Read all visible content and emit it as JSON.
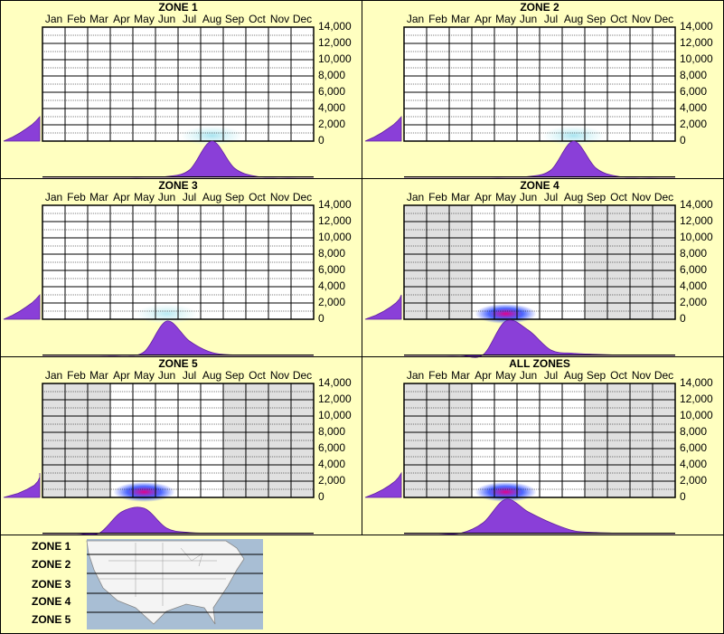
{
  "chart_data": [
    {
      "type": "heatmap",
      "title": "ZONE 1",
      "categories": [
        "Jan",
        "Feb",
        "Mar",
        "Apr",
        "May",
        "Jun",
        "Jul",
        "Aug",
        "Sep",
        "Oct",
        "Nov",
        "Dec"
      ],
      "ylim": [
        0,
        14000
      ],
      "yticks": [
        0,
        {
          "value": 2000,
          "label": "2,000"
        },
        {
          "value": 4000,
          "label": "4,000"
        },
        {
          "value": 6000,
          "label": "6,000"
        },
        {
          "value": 8000,
          "label": "8,000"
        },
        {
          "value": 10000,
          "label": "10,000"
        },
        {
          "value": 12000,
          "label": "12,000"
        },
        {
          "value": 14000,
          "label": "14,000"
        }
      ],
      "shaded": [
        false,
        false,
        false,
        false,
        false,
        false,
        false,
        false,
        false,
        false,
        false,
        false
      ],
      "glow_color": "#a8e4f0",
      "glow_edge": "#d8f4f8",
      "fill": "#8a3fd8",
      "month_density": [
        0,
        0,
        0,
        0,
        0,
        2,
        20,
        100,
        25,
        2,
        0,
        0
      ],
      "elevation": [
        0,
        500,
        1000,
        1500,
        2000,
        2500,
        3000
      ],
      "elevation_density": [
        100,
        75,
        55,
        38,
        22,
        10,
        0
      ]
    },
    {
      "type": "heatmap",
      "title": "ZONE 2",
      "categories": [
        "Jan",
        "Feb",
        "Mar",
        "Apr",
        "May",
        "Jun",
        "Jul",
        "Aug",
        "Sep",
        "Oct",
        "Nov",
        "Dec"
      ],
      "ylim": [
        0,
        14000
      ],
      "yticks": [
        0,
        {
          "value": 2000,
          "label": "2,000"
        },
        {
          "value": 4000,
          "label": "4,000"
        },
        {
          "value": 6000,
          "label": "6,000"
        },
        {
          "value": 8000,
          "label": "8,000"
        },
        {
          "value": 10000,
          "label": "10,000"
        },
        {
          "value": 12000,
          "label": "12,000"
        },
        {
          "value": 14000,
          "label": "14,000"
        }
      ],
      "shaded": [
        false,
        false,
        false,
        false,
        false,
        false,
        false,
        false,
        false,
        false,
        false,
        false
      ],
      "glow_color": "#a8e4f0",
      "glow_edge": "#d8f4f8",
      "fill": "#8a3fd8",
      "month_density": [
        0,
        0,
        0,
        0,
        0,
        2,
        20,
        100,
        25,
        2,
        0,
        0
      ],
      "elevation": [
        0,
        500,
        1000,
        1500,
        2000,
        2500,
        3000
      ],
      "elevation_density": [
        100,
        75,
        55,
        38,
        22,
        10,
        0
      ]
    },
    {
      "type": "heatmap",
      "title": "ZONE 3",
      "categories": [
        "Jan",
        "Feb",
        "Mar",
        "Apr",
        "May",
        "Jun",
        "Jul",
        "Aug",
        "Sep",
        "Oct",
        "Nov",
        "Dec"
      ],
      "ylim": [
        0,
        14000
      ],
      "yticks": [
        0,
        {
          "value": 2000,
          "label": "2,000"
        },
        {
          "value": 4000,
          "label": "4,000"
        },
        {
          "value": 6000,
          "label": "6,000"
        },
        {
          "value": 8000,
          "label": "8,000"
        },
        {
          "value": 10000,
          "label": "10,000"
        },
        {
          "value": 12000,
          "label": "12,000"
        },
        {
          "value": 14000,
          "label": "14,000"
        }
      ],
      "shaded": [
        false,
        false,
        false,
        false,
        false,
        false,
        false,
        false,
        false,
        false,
        false,
        false
      ],
      "glow_color": "#b8eaf2",
      "glow_edge": "#e0f6f8",
      "fill": "#8a3fd8",
      "month_density": [
        0,
        0,
        0,
        0,
        10,
        95,
        40,
        8,
        1,
        0,
        0,
        0
      ],
      "elevation": [
        0,
        500,
        1000,
        1500,
        2000,
        2500,
        3000
      ],
      "elevation_density": [
        100,
        75,
        55,
        38,
        22,
        10,
        0
      ]
    },
    {
      "type": "heatmap",
      "title": "ZONE 4",
      "categories": [
        "Jan",
        "Feb",
        "Mar",
        "Apr",
        "May",
        "Jun",
        "Jul",
        "Aug",
        "Sep",
        "Oct",
        "Nov",
        "Dec"
      ],
      "ylim": [
        0,
        14000
      ],
      "yticks": [
        0,
        {
          "value": 2000,
          "label": "2,000"
        },
        {
          "value": 4000,
          "label": "4,000"
        },
        {
          "value": 6000,
          "label": "6,000"
        },
        {
          "value": 8000,
          "label": "8,000"
        },
        {
          "value": 10000,
          "label": "10,000"
        },
        {
          "value": 12000,
          "label": "12,000"
        },
        {
          "value": 14000,
          "label": "14,000"
        }
      ],
      "shaded": [
        true,
        true,
        true,
        false,
        false,
        false,
        false,
        false,
        true,
        true,
        true,
        true
      ],
      "glow_color": "#e0008c",
      "glow_edge": "#2040ff",
      "fill": "#8a3fd8",
      "month_density": [
        0,
        0,
        0,
        2,
        95,
        70,
        15,
        6,
        3,
        1,
        0,
        0
      ],
      "elevation": [
        0,
        500,
        1000,
        1500,
        2000,
        2500,
        3000
      ],
      "elevation_density": [
        100,
        70,
        48,
        30,
        15,
        5,
        0
      ]
    },
    {
      "type": "heatmap",
      "title": "ZONE 5",
      "categories": [
        "Jan",
        "Feb",
        "Mar",
        "Apr",
        "May",
        "Jun",
        "Jul",
        "Aug",
        "Sep",
        "Oct",
        "Nov",
        "Dec"
      ],
      "ylim": [
        0,
        14000
      ],
      "yticks": [
        0,
        {
          "value": 2000,
          "label": "2,000"
        },
        {
          "value": 4000,
          "label": "4,000"
        },
        {
          "value": 6000,
          "label": "6,000"
        },
        {
          "value": 8000,
          "label": "8,000"
        },
        {
          "value": 10000,
          "label": "10,000"
        },
        {
          "value": 12000,
          "label": "12,000"
        },
        {
          "value": 14000,
          "label": "14,000"
        }
      ],
      "shaded": [
        true,
        true,
        true,
        false,
        false,
        false,
        false,
        false,
        true,
        true,
        true,
        true
      ],
      "glow_color": "#e0008c",
      "glow_edge": "#2040ff",
      "fill": "#8a3fd8",
      "month_density": [
        0,
        0,
        1,
        60,
        70,
        15,
        3,
        1,
        0,
        0,
        0,
        0
      ],
      "elevation": [
        0,
        500,
        1000,
        1500,
        2000,
        2500,
        3000
      ],
      "elevation_density": [
        100,
        60,
        35,
        15,
        5,
        0,
        0
      ]
    },
    {
      "type": "heatmap",
      "title": "ALL ZONES",
      "categories": [
        "Jan",
        "Feb",
        "Mar",
        "Apr",
        "May",
        "Jun",
        "Jul",
        "Aug",
        "Sep",
        "Oct",
        "Nov",
        "Dec"
      ],
      "ylim": [
        0,
        14000
      ],
      "yticks": [
        0,
        {
          "value": 2000,
          "label": "2,000"
        },
        {
          "value": 4000,
          "label": "4,000"
        },
        {
          "value": 6000,
          "label": "6,000"
        },
        {
          "value": 8000,
          "label": "8,000"
        },
        {
          "value": 10000,
          "label": "10,000"
        },
        {
          "value": 12000,
          "label": "12,000"
        },
        {
          "value": 14000,
          "label": "14,000"
        }
      ],
      "shaded": [
        true,
        true,
        true,
        false,
        false,
        false,
        false,
        false,
        true,
        true,
        true,
        true
      ],
      "glow_color": "#e0008c",
      "glow_edge": "#2040ff",
      "fill": "#8a3fd8",
      "month_density": [
        0,
        0,
        1,
        30,
        95,
        60,
        30,
        8,
        3,
        1,
        0,
        0
      ],
      "elevation": [
        0,
        500,
        1000,
        1500,
        2000,
        2500,
        3000
      ],
      "elevation_density": [
        100,
        72,
        50,
        32,
        17,
        7,
        0
      ]
    }
  ],
  "map_legend": {
    "zones": [
      "ZONE 1",
      "ZONE 2",
      "ZONE 3",
      "ZONE 4",
      "ZONE 5"
    ]
  }
}
